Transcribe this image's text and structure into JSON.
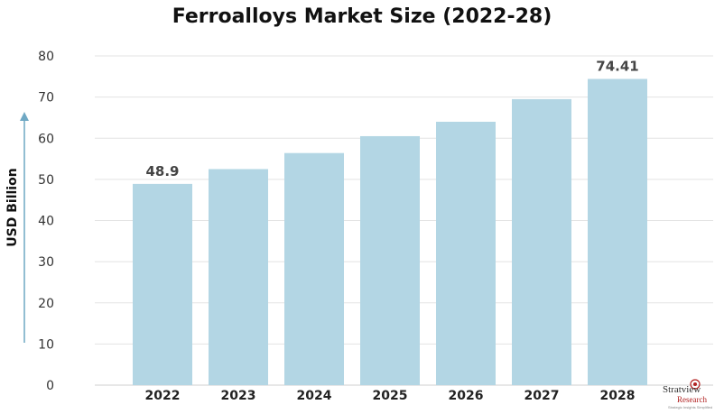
{
  "chart_data": {
    "type": "bar",
    "title": "Ferroalloys Market Size (2022-28)",
    "ylabel": "USD Billion",
    "xlabel": "",
    "categories": [
      "2022",
      "2023",
      "2024",
      "2025",
      "2026",
      "2027",
      "2028"
    ],
    "values": [
      48.9,
      52.5,
      56.4,
      60.5,
      64.0,
      69.5,
      74.41
    ],
    "data_labels": [
      "48.9",
      "",
      "",
      "",
      "",
      "",
      "74.41"
    ],
    "ylim": [
      0,
      80
    ],
    "yticks": [
      0,
      10,
      20,
      30,
      40,
      50,
      60,
      70,
      80
    ],
    "grid": true,
    "bar_color": "#b3d6e4",
    "axis_arrow_color": "#6fa8c4"
  },
  "logo": {
    "name": "Stratview",
    "sub": "Research",
    "tagline": "Strategic Insights Simplified"
  }
}
